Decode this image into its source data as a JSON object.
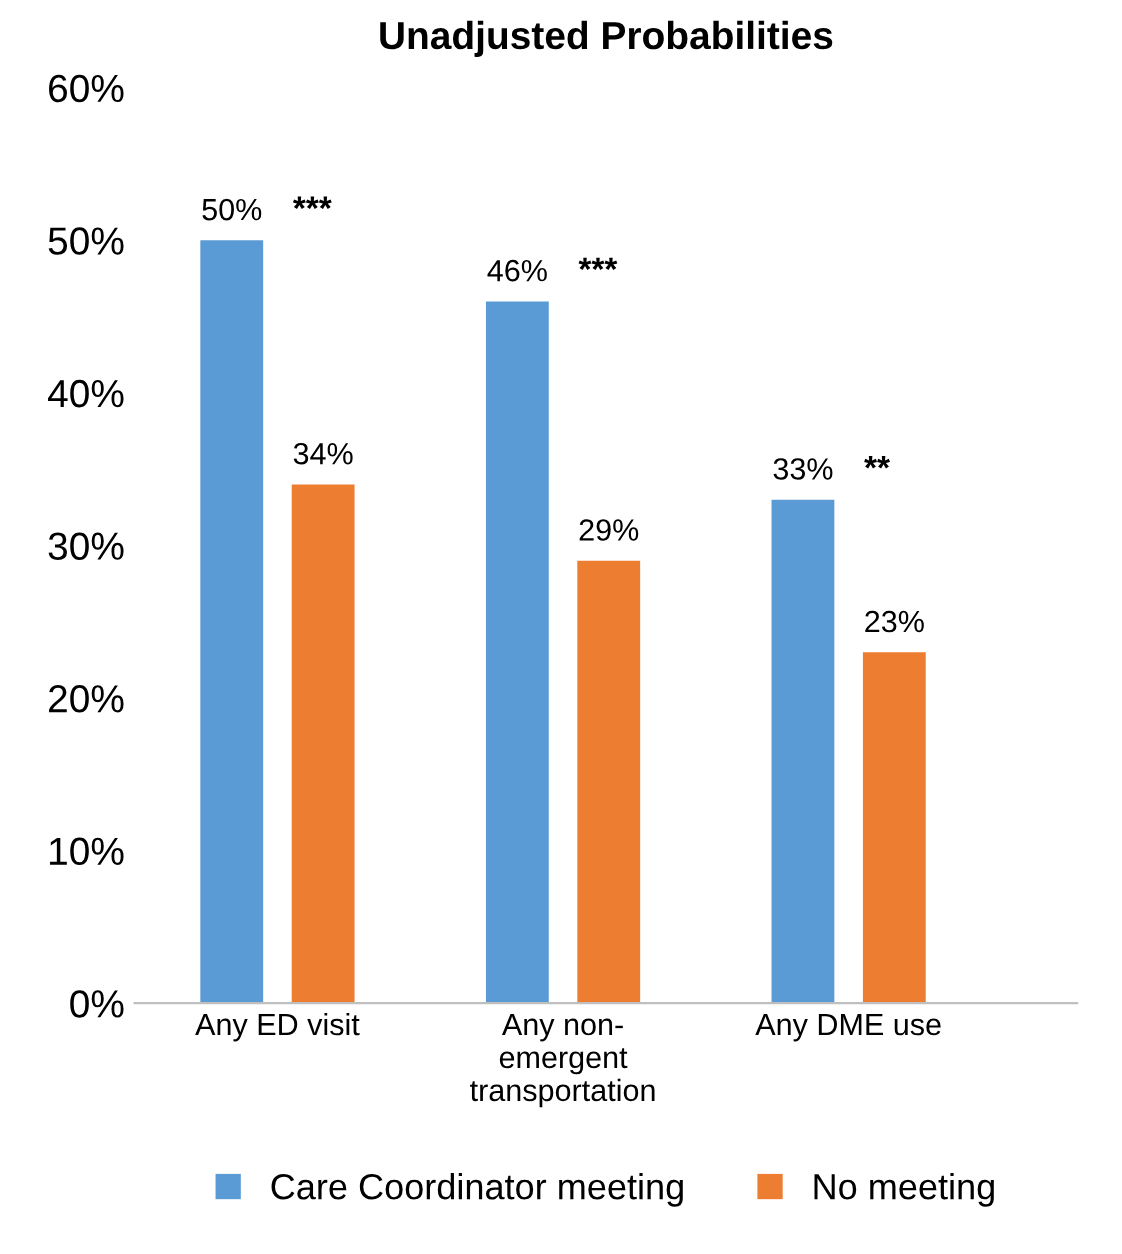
{
  "chart_data": {
    "type": "bar",
    "title": "Unadjusted Probabilities",
    "categories": [
      "Any ED visit",
      "Any non-\nemergent\ntransportation",
      "Any DME use"
    ],
    "series": [
      {
        "name": "Care Coordinator meeting",
        "color": "#5b9bd5",
        "values": [
          50,
          46,
          33
        ],
        "value_labels": [
          "50%",
          "46%",
          "33%"
        ]
      },
      {
        "name": "No meeting",
        "color": "#ed7d31",
        "values": [
          34,
          29,
          23
        ],
        "value_labels": [
          "34%",
          "29%",
          "23%"
        ]
      }
    ],
    "annotations": [
      "***",
      "***",
      "**"
    ],
    "ylim": [
      0,
      60
    ],
    "yticks": [
      {
        "value": 0,
        "label": "0%"
      },
      {
        "value": 10,
        "label": "10%"
      },
      {
        "value": 20,
        "label": "20%"
      },
      {
        "value": 30,
        "label": "30%"
      },
      {
        "value": 40,
        "label": "40%"
      },
      {
        "value": 50,
        "label": "50%"
      },
      {
        "value": 60,
        "label": "60%"
      }
    ],
    "grid": false,
    "legend": "bottom"
  }
}
